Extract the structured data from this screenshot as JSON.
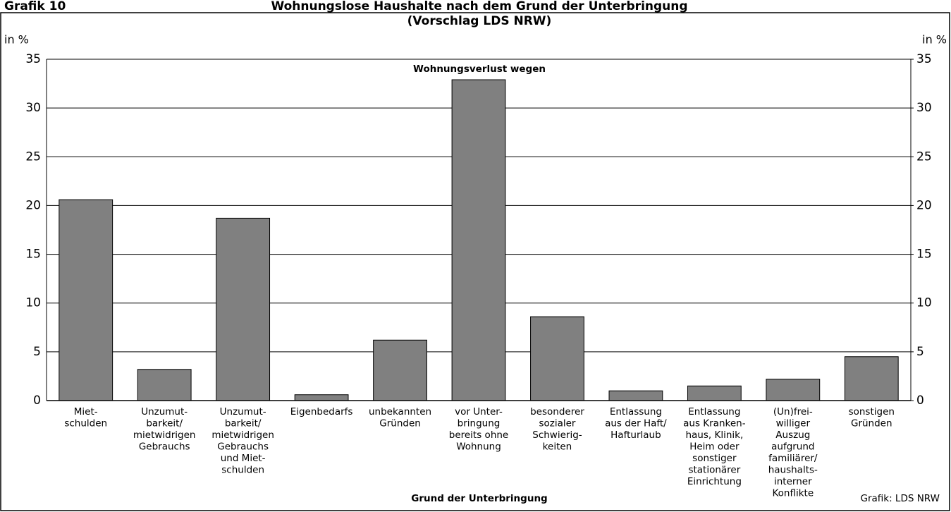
{
  "chart_data": {
    "type": "bar",
    "label": "Grafik 10",
    "title": [
      "Wohnungslose Haushalte nach dem Grund der Unterbringung",
      "(Vorschlag LDS NRW)"
    ],
    "y_unit_left": "in %",
    "y_unit_right": "in %",
    "annotation": "Wohnungsverlust wegen",
    "x_label": "Grund der Unterbringung",
    "source": "Grafik: LDS NRW",
    "categories": [
      [
        "Miet-",
        "schulden"
      ],
      [
        "Unzumut-",
        "barkeit/",
        "mietwidrigen",
        "Gebrauchs"
      ],
      [
        "Unzumut-",
        "barkeit/",
        "mietwidrigen",
        "Gebrauchs",
        "und Miet-",
        "schulden"
      ],
      [
        "Eigenbedarfs"
      ],
      [
        "unbekannten",
        "Gründen"
      ],
      [
        "vor Unter-",
        "bringung",
        "bereits ohne",
        "Wohnung"
      ],
      [
        "besonderer",
        "sozialer",
        "Schwierig-",
        "keiten"
      ],
      [
        "Entlassung",
        "aus der Haft/",
        "Hafturlaub"
      ],
      [
        "Entlassung",
        "aus Kranken-",
        "haus, Klinik,",
        "Heim oder",
        "sonstiger",
        "stationärer",
        "Einrichtung"
      ],
      [
        "(Un)frei-",
        "williger",
        "Auszug",
        "aufgrund",
        "familiärer/",
        "haushalts-",
        "interner",
        "Konflikte"
      ],
      [
        "sonstigen",
        "Gründen"
      ]
    ],
    "values": [
      20.6,
      3.2,
      18.7,
      0.6,
      6.2,
      32.9,
      8.6,
      1.0,
      1.5,
      2.2,
      4.5
    ],
    "color": "#808080",
    "ylim": [
      0,
      35
    ],
    "yticks": [
      0,
      5,
      10,
      15,
      20,
      25,
      30,
      35
    ],
    "y2lim": [
      0,
      35
    ],
    "y2ticks": [
      0,
      5,
      10,
      15,
      20,
      25,
      30,
      35
    ],
    "grid": true
  }
}
